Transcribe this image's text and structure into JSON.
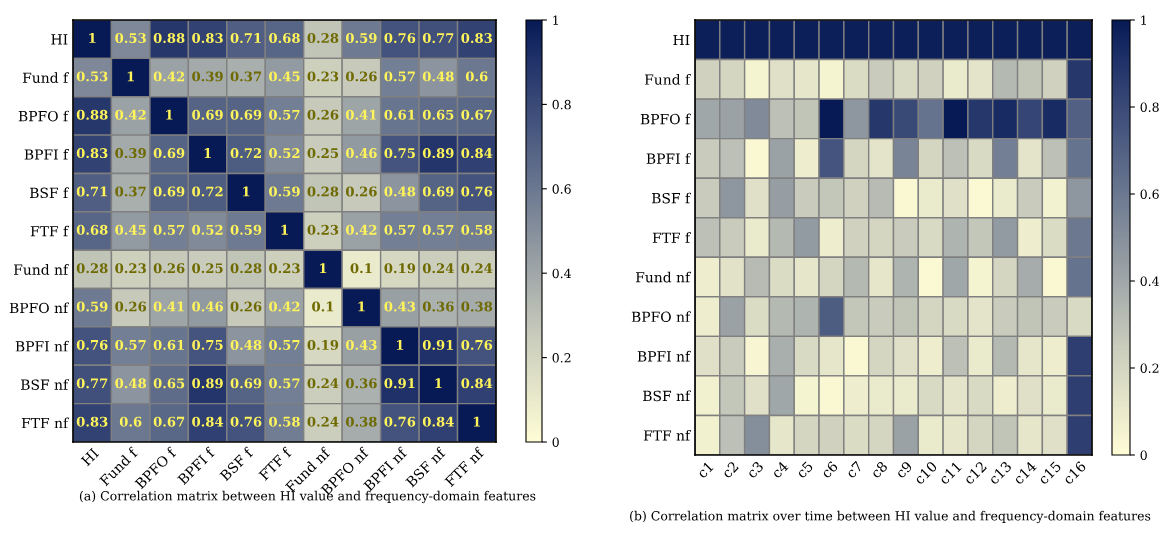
{
  "chart_data": [
    {
      "type": "heatmap",
      "categories": [
        "HI",
        "Fund f",
        "BPFO f",
        "BPFI f",
        "BSF f",
        "FTF f",
        "Fund nf",
        "BPFO nf",
        "BPFI nf",
        "BSF nf",
        "FTF nf"
      ],
      "y_categories": [
        "HI",
        "Fund f",
        "BPFO f",
        "BPFI f",
        "BSF f",
        "FTF f",
        "Fund nf",
        "BPFO nf",
        "BPFI nf",
        "BSF nf",
        "FTF nf"
      ],
      "cells": [
        [
          1,
          0.53,
          0.88,
          0.83,
          0.71,
          0.68,
          0.28,
          0.59,
          0.76,
          0.77,
          0.83
        ],
        [
          0.53,
          1,
          0.42,
          0.39,
          0.37,
          0.45,
          0.23,
          0.26,
          0.57,
          0.48,
          0.6
        ],
        [
          0.88,
          0.42,
          1,
          0.69,
          0.69,
          0.57,
          0.26,
          0.41,
          0.61,
          0.65,
          0.67
        ],
        [
          0.83,
          0.39,
          0.69,
          1,
          0.72,
          0.52,
          0.25,
          0.46,
          0.75,
          0.89,
          0.84
        ],
        [
          0.71,
          0.37,
          0.69,
          0.72,
          1,
          0.59,
          0.28,
          0.26,
          0.48,
          0.69,
          0.76
        ],
        [
          0.68,
          0.45,
          0.57,
          0.52,
          0.59,
          1,
          0.23,
          0.42,
          0.57,
          0.57,
          0.58
        ],
        [
          0.28,
          0.23,
          0.26,
          0.25,
          0.28,
          0.23,
          1,
          0.1,
          0.19,
          0.24,
          0.24
        ],
        [
          0.59,
          0.26,
          0.41,
          0.46,
          0.26,
          0.42,
          0.1,
          1,
          0.43,
          0.36,
          0.38
        ],
        [
          0.76,
          0.57,
          0.61,
          0.75,
          0.48,
          0.57,
          0.19,
          0.43,
          1,
          0.91,
          0.76
        ],
        [
          0.77,
          0.48,
          0.65,
          0.89,
          0.69,
          0.57,
          0.24,
          0.36,
          0.91,
          1,
          0.84
        ],
        [
          0.83,
          0.6,
          0.67,
          0.84,
          0.76,
          0.58,
          0.24,
          0.38,
          0.76,
          0.84,
          1
        ]
      ],
      "data_labels": true,
      "clim": [
        0,
        1
      ],
      "cticks": [
        0,
        0.2,
        0.4,
        0.6,
        0.8,
        1
      ],
      "annotations": [
        "(a) Correlation matrix between HI value and frequency-domain features"
      ]
    },
    {
      "type": "heatmap",
      "categories": [
        "c1",
        "c2",
        "c3",
        "c4",
        "c5",
        "c6",
        "c7",
        "c8",
        "c9",
        "c10",
        "c11",
        "c12",
        "c13",
        "c14",
        "c15",
        "c16"
      ],
      "y_categories": [
        "HI",
        "Fund f",
        "BPFO f",
        "BPFI f",
        "BSF f",
        "FTF f",
        "Fund nf",
        "BPFO nf",
        "BPFI nf",
        "BSF nf",
        "FTF nf"
      ],
      "cells": [
        [
          0.98,
          0.98,
          0.98,
          0.98,
          0.98,
          0.98,
          0.98,
          0.98,
          0.98,
          0.98,
          0.98,
          0.98,
          0.98,
          0.98,
          0.98,
          0.98
        ],
        [
          0.22,
          0.2,
          0.05,
          0.15,
          0.12,
          0.05,
          0.17,
          0.25,
          0.18,
          0.22,
          0.1,
          0.13,
          0.33,
          0.28,
          0.22,
          0.88
        ],
        [
          0.4,
          0.42,
          0.52,
          0.3,
          0.28,
          1.0,
          0.47,
          0.88,
          0.8,
          0.62,
          1.0,
          0.88,
          0.93,
          0.82,
          0.93,
          0.7
        ],
        [
          0.25,
          0.3,
          0.03,
          0.42,
          0.08,
          0.75,
          0.2,
          0.13,
          0.55,
          0.2,
          0.3,
          0.18,
          0.57,
          0.13,
          0.3,
          0.62
        ],
        [
          0.25,
          0.47,
          0.15,
          0.44,
          0.25,
          0.27,
          0.22,
          0.32,
          0.03,
          0.1,
          0.15,
          0.02,
          0.1,
          0.25,
          0.06,
          0.47
        ],
        [
          0.3,
          0.25,
          0.1,
          0.33,
          0.45,
          0.08,
          0.22,
          0.2,
          0.25,
          0.18,
          0.35,
          0.27,
          0.45,
          0.08,
          0.17,
          0.6
        ],
        [
          0.08,
          0.14,
          0.32,
          0.17,
          0.12,
          0.2,
          0.33,
          0.12,
          0.35,
          0.02,
          0.4,
          0.05,
          0.2,
          0.38,
          0.03,
          0.62
        ],
        [
          0.08,
          0.42,
          0.17,
          0.33,
          0.35,
          0.72,
          0.27,
          0.25,
          0.28,
          0.2,
          0.18,
          0.13,
          0.25,
          0.28,
          0.25,
          0.18
        ],
        [
          0.15,
          0.25,
          0.04,
          0.37,
          0.18,
          0.12,
          0.03,
          0.2,
          0.15,
          0.08,
          0.3,
          0.1,
          0.33,
          0.12,
          0.08,
          0.85
        ],
        [
          0.07,
          0.27,
          0.15,
          0.4,
          0.05,
          0.03,
          0.08,
          0.1,
          0.1,
          0.18,
          0.13,
          0.18,
          0.08,
          0.15,
          0.1,
          0.85
        ],
        [
          0.07,
          0.3,
          0.5,
          0.12,
          0.2,
          0.22,
          0.17,
          0.2,
          0.42,
          0.1,
          0.12,
          0.2,
          0.28,
          0.12,
          0.15,
          0.85
        ]
      ],
      "clim": [
        0,
        1
      ],
      "cticks": [
        0,
        0.2,
        0.4,
        0.6,
        0.8,
        1
      ],
      "annotations": [
        "(b) Correlation matrix over time between HI value and frequency-domain features"
      ]
    }
  ]
}
